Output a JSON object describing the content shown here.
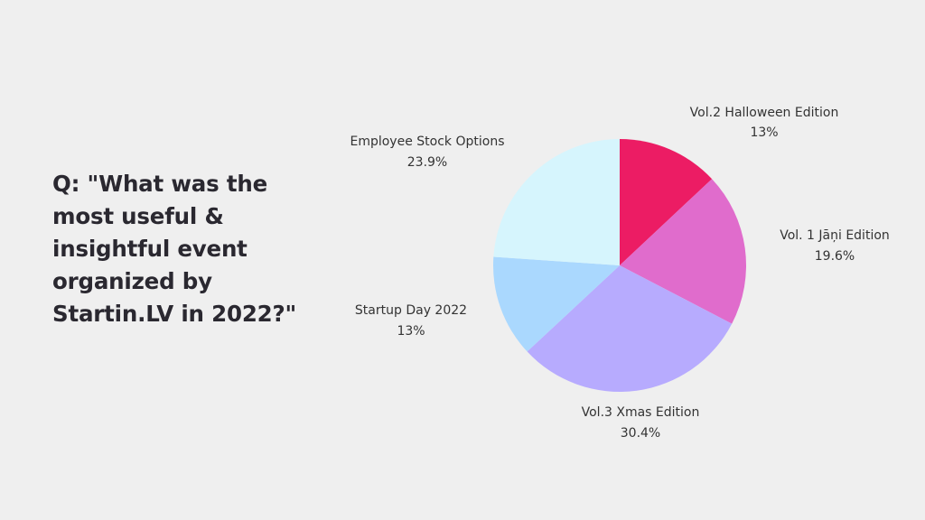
{
  "question": "Q: \"What was the most useful & insightful event organized by Startin.LV in 2022?\"",
  "chart_data": {
    "type": "pie",
    "start_angle_deg": 0,
    "direction": "clockwise",
    "slices": [
      {
        "label": "Vol.2 Halloween Edition",
        "value": 13,
        "value_label": "13%",
        "color": "#ec1c64"
      },
      {
        "label": "Vol. 1 Jāņi Edition",
        "value": 19.6,
        "value_label": "19.6%",
        "color": "#e06ccc"
      },
      {
        "label": "Vol.3 Xmas Edition",
        "value": 30.4,
        "value_label": "30.4%",
        "color": "#b7abfe"
      },
      {
        "label": "Startup Day 2022",
        "value": 13,
        "value_label": "13%",
        "color": "#aad8fe"
      },
      {
        "label": "Employee Stock Options",
        "value": 23.9,
        "value_label": "23.9%",
        "color": "#d6f5fd"
      }
    ],
    "legend": "none",
    "labels_outside": true
  }
}
